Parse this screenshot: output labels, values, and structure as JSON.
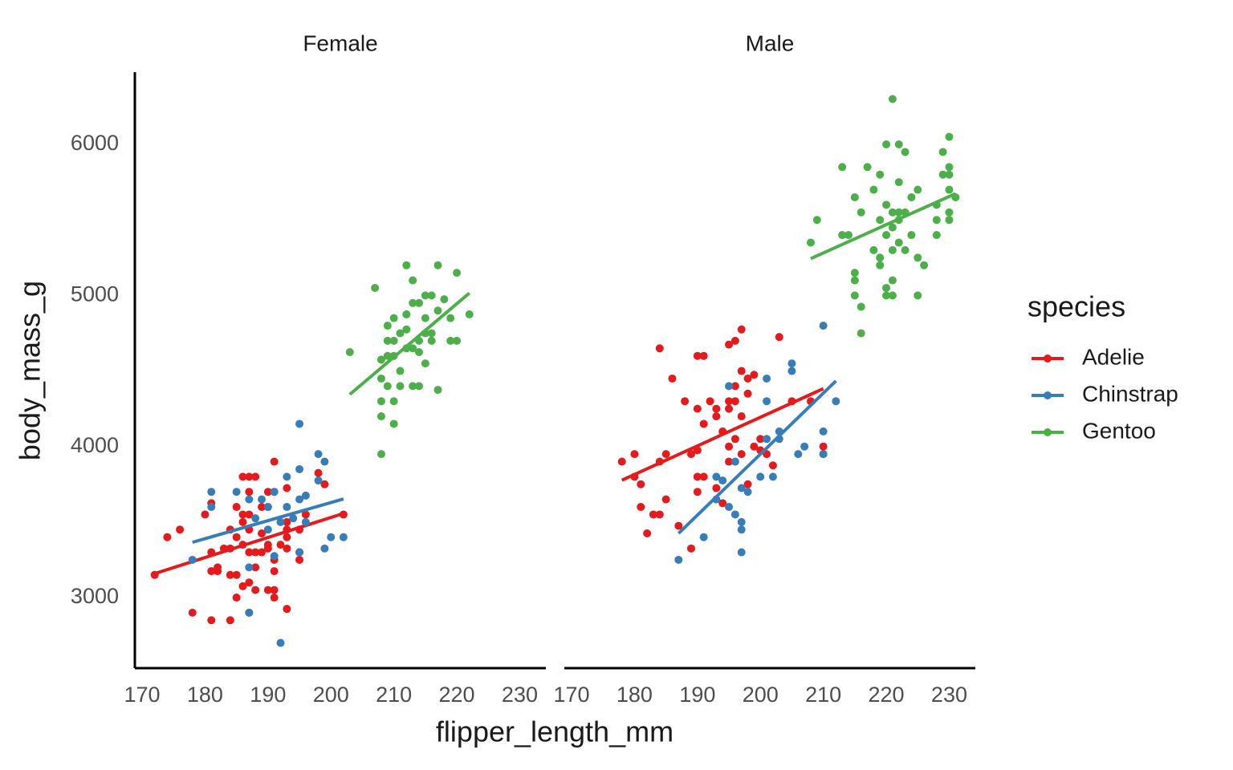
{
  "chart_data": {
    "type": "scatter",
    "x_label": "flipper_length_mm",
    "y_label": "body_mass_g",
    "legend_title": "species",
    "legend_position": "right",
    "xlim": [
      168.85,
      234.15
    ],
    "xticks": [
      170,
      180,
      190,
      200,
      210,
      220,
      230
    ],
    "ylim": [
      2533,
      6478
    ],
    "yticks": [
      3000,
      4000,
      5000,
      6000
    ],
    "series": [
      {
        "name": "Adelie",
        "color": "#e41a1c"
      },
      {
        "name": "Chinstrap",
        "color": "#377eb8"
      },
      {
        "name": "Gentoo",
        "color": "#4daf4a"
      }
    ],
    "facets": [
      {
        "title": "Female",
        "data": [
          {
            "x": [
              172,
              174,
              176,
              178,
              180,
              181,
              181,
              181,
              181,
              182,
              182,
              183,
              184,
              184,
              184,
              185,
              185,
              185,
              185,
              186,
              186,
              186,
              186,
              187,
              187,
              187,
              187,
              187,
              187,
              187,
              188,
              188,
              188,
              189,
              189,
              189,
              190,
              190,
              190,
              190,
              190,
              191,
              191,
              191,
              191,
              191,
              191,
              192,
              193,
              193,
              193,
              193,
              193,
              195,
              195,
              195,
              196,
              198,
              199,
              202,
              193,
              186,
              184,
              188
            ],
            "values": [
              3150,
              3400,
              3450,
              2900,
              3550,
              3625,
              3300,
              3175,
              2850,
              3200,
              3175,
              3325,
              3450,
              2850,
              3325,
              3600,
              3400,
              3150,
              3000,
              3550,
              3500,
              3800,
              3075,
              3800,
              3700,
              3550,
              3450,
              3300,
              3100,
              2900,
              3300,
              3050,
              3800,
              3300,
              3425,
              3600,
              3700,
              3350,
              3050,
              3600,
              3325,
              3900,
              3175,
              3050,
              3000,
              3250,
              3700,
              3350,
              3450,
              3500,
              3400,
              2925,
              3325,
              3250,
              3300,
              3450,
              3550,
              3825,
              3750,
              3550,
              3725,
              3350,
              3150,
              3200
            ],
            "fit_x": [
              172,
              202
            ],
            "fit_values": [
              3159,
              3557
            ]
          },
          {
            "x": [
              178,
              181,
              181,
              185,
              187,
              187,
              187,
              188,
              189,
              190,
              190,
              191,
              191,
              192,
              192,
              193,
              193,
              194,
              195,
              195,
              195,
              195,
              196,
              198,
              198,
              199,
              199,
              200,
              202,
              196
            ],
            "values": [
              3250,
              3700,
              3600,
              3700,
              3650,
              3200,
              2900,
              3525,
              3650,
              3450,
              3600,
              3700,
              3275,
              3500,
              2700,
              3800,
              3600,
              3525,
              3850,
              3300,
              3650,
              4150,
              3675,
              3950,
              3775,
              3900,
              3325,
              3400,
              3400,
              3500
            ],
            "fit_x": [
              178,
              202
            ],
            "fit_values": [
              3366,
              3653
            ]
          },
          {
            "x": [
              203,
              207,
              208,
              208,
              208,
              208,
              208,
              209,
              209,
              209,
              209,
              210,
              210,
              210,
              210,
              210,
              211,
              211,
              212,
              212,
              212,
              212,
              213,
              213,
              213,
              213,
              214,
              214,
              214,
              215,
              215,
              215,
              215,
              216,
              216,
              216,
              217,
              217,
              217,
              218,
              219,
              219,
              220,
              220,
              222,
              214,
              211
            ],
            "values": [
              4625,
              5050,
              3950,
              4575,
              4450,
              4300,
              4200,
              4800,
              4600,
              4700,
              4400,
              4850,
              4600,
              4300,
              4150,
              4700,
              4750,
              4500,
              4875,
              5200,
              4650,
              4775,
              5100,
              4950,
              4650,
              4400,
              4950,
              4700,
              4400,
              5000,
              4850,
              4750,
              4550,
              5000,
              4750,
              4700,
              4900,
              4375,
              5200,
              4975,
              4700,
              4850,
              4700,
              5150,
              4875,
              4625,
              4400
            ],
            "fit_x": [
              203,
              222
            ],
            "fit_values": [
              4345,
              5016
            ]
          }
        ]
      },
      {
        "title": "Male",
        "data": [
          {
            "x": [
              178,
              180,
              180,
              181,
              181,
              182,
              183,
              184,
              184,
              184,
              185,
              185,
              186,
              187,
              188,
              189,
              189,
              190,
              190,
              190,
              190,
              190,
              191,
              191,
              191,
              192,
              193,
              193,
              193,
              194,
              194,
              195,
              195,
              195,
              195,
              195,
              196,
              196,
              196,
              196,
              197,
              197,
              197,
              197,
              198,
              198,
              198,
              199,
              199,
              200,
              200,
              201,
              202,
              203,
              205,
              208,
              210,
              210
            ],
            "values": [
              3900,
              3950,
              3800,
              3750,
              3600,
              3425,
              3550,
              3900,
              3550,
              4650,
              3950,
              3650,
              4450,
              3475,
              4300,
              3325,
              3950,
              4600,
              4250,
              3800,
              3975,
              3700,
              4600,
              4150,
              3800,
              4300,
              4250,
              4200,
              3725,
              4100,
              3625,
              4675,
              4300,
              4250,
              4000,
              3900,
              4700,
              4400,
              4300,
              4050,
              4775,
              4500,
              4200,
              3950,
              4450,
              4350,
              3750,
              4475,
              4000,
              3975,
              4050,
              3950,
              3875,
              4725,
              4300,
              4300,
              4000,
              3950
            ],
            "fit_x": [
              178,
              210
            ],
            "fit_values": [
              3777,
              4383
            ]
          },
          {
            "x": [
              187,
              191,
              193,
              193,
              194,
              195,
              195,
              196,
              196,
              197,
              197,
              197,
              198,
              200,
              201,
              201,
              201,
              202,
              203,
              203,
              205,
              205,
              206,
              207,
              210,
              210,
              210,
              212,
              197
            ],
            "values": [
              3250,
              3400,
              3650,
              3800,
              3775,
              4400,
              3600,
              3550,
              3900,
              3450,
              3300,
              3725,
              3700,
              3800,
              4450,
              4050,
              4300,
              3800,
              4100,
              4050,
              4550,
              4500,
              3950,
              4000,
              4800,
              4100,
              3950,
              4300,
              3500
            ],
            "fit_x": [
              187,
              212
            ],
            "fit_values": [
              3425,
              4434
            ]
          },
          {
            "x": [
              208,
              209,
              213,
              213,
              214,
              215,
              215,
              215,
              215,
              216,
              216,
              216,
              217,
              218,
              218,
              219,
              219,
              219,
              220,
              220,
              220,
              220,
              220,
              221,
              221,
              221,
              221,
              221,
              221,
              222,
              222,
              222,
              222,
              223,
              223,
              224,
              224,
              225,
              225,
              225,
              226,
              228,
              228,
              229,
              229,
              230,
              230,
              230,
              230,
              230,
              230,
              231,
              228,
              222,
              219,
              223
            ],
            "values": [
              5350,
              5500,
              5850,
              5400,
              5400,
              5650,
              5150,
              5100,
              5000,
              5550,
              4925,
              4750,
              5850,
              5300,
              5700,
              5500,
              5250,
              5200,
              5400,
              5600,
              5050,
              5000,
              6000,
              6300,
              5550,
              5450,
              5300,
              5100,
              5000,
              6000,
              5750,
              5550,
              5350,
              5950,
              5550,
              5650,
              5400,
              5700,
              5250,
              5000,
              5200,
              5600,
              5400,
              5950,
              5800,
              5850,
              5800,
              5700,
              5550,
              5500,
              6050,
              5650,
              5500,
              5500,
              5800,
              5300
            ],
            "fit_x": [
              208,
              231
            ],
            "fit_values": [
              5244,
              5674
            ]
          }
        ]
      }
    ]
  }
}
